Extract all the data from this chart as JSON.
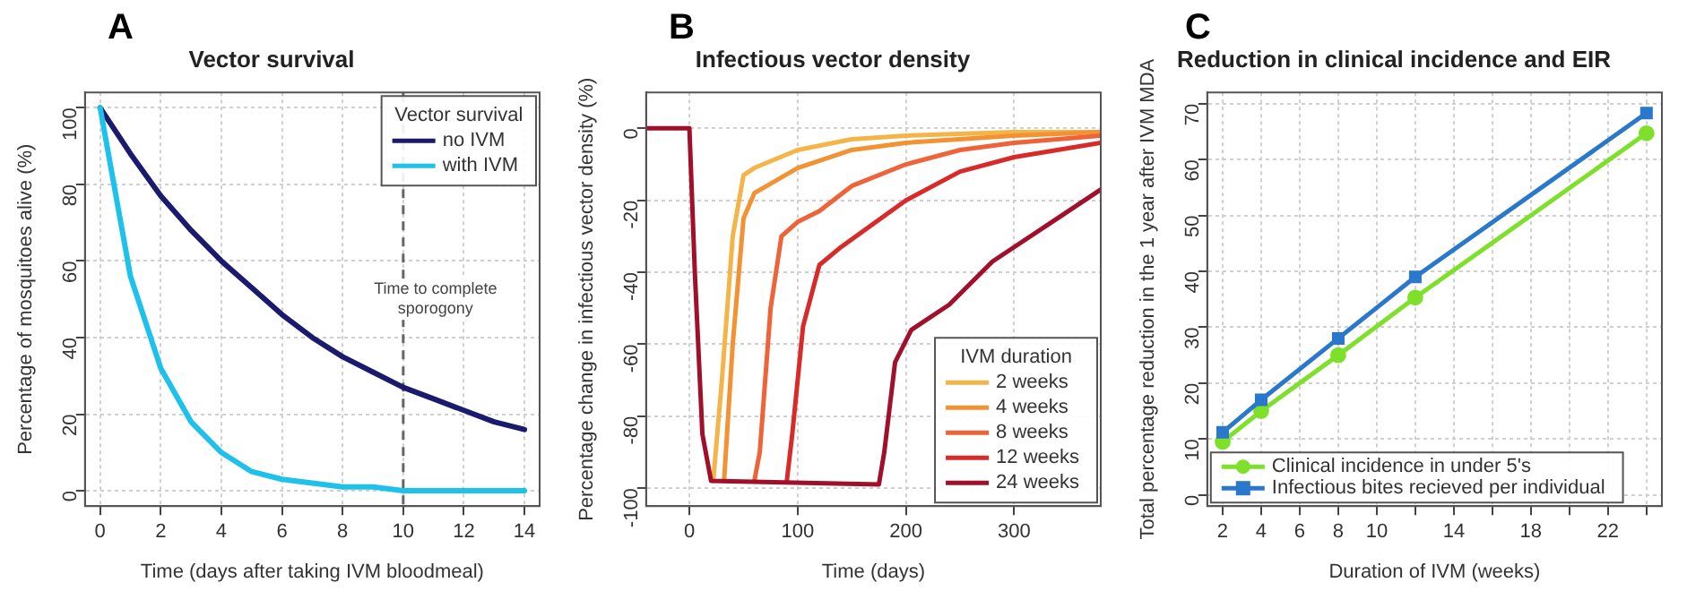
{
  "chart_data": [
    {
      "type": "line",
      "title": "Vector survival",
      "xlabel": "Time (days after taking IVM bloodmeal)",
      "ylabel": "Percentage of mosquitoes alive (%)",
      "legend_title": "Vector survival",
      "annotations": [
        "A"
      ],
      "x": [
        0,
        1,
        2,
        3,
        4,
        5,
        6,
        7,
        8,
        9,
        10,
        11,
        12,
        13,
        14
      ],
      "series": [
        {
          "name": "no IVM",
          "color": "#1a1a6e",
          "values": [
            100,
            88,
            77,
            68,
            60,
            53,
            46,
            40,
            35,
            31,
            27,
            24,
            21,
            18,
            16
          ]
        },
        {
          "name": "with IVM",
          "color": "#1ec0ec",
          "values": [
            100,
            56,
            32,
            18,
            10,
            5,
            3,
            2,
            1,
            1,
            0,
            0,
            0,
            0,
            0
          ]
        }
      ],
      "xlim": [
        -0.5,
        14.5
      ],
      "xticks": [
        0,
        2,
        4,
        6,
        8,
        10,
        12,
        14
      ],
      "ylim": [
        -4,
        104
      ],
      "yticks": [
        0,
        20,
        40,
        60,
        80,
        100
      ],
      "grid": true,
      "legend": "top right",
      "ref_lines": [
        {
          "axis": "x",
          "value": 10,
          "label": "Time to complete sporogony",
          "line_style": "dashed",
          "color": "#666666"
        }
      ]
    },
    {
      "type": "line",
      "title": "Infectious vector density",
      "xlabel": "Time (days)",
      "ylabel": "Percentage change in infectious vector density (%)",
      "legend_title": "IVM duration",
      "annotations": [
        "B"
      ],
      "series": [
        {
          "name": "2 weeks",
          "color": "#f5b447",
          "x": [
            22,
            30,
            40,
            50,
            60,
            100,
            150,
            200,
            300,
            380
          ],
          "values": [
            -98,
            -70,
            -30,
            -13,
            -11,
            -6,
            -3,
            -2,
            -1,
            -1
          ]
        },
        {
          "name": "4 weeks",
          "color": "#f39232",
          "x": [
            32,
            40,
            50,
            60,
            100,
            150,
            200,
            300,
            380
          ],
          "values": [
            -98,
            -60,
            -25,
            -18,
            -11,
            -6,
            -4,
            -2,
            -1
          ]
        },
        {
          "name": "8 weeks",
          "color": "#ee6338",
          "x": [
            60,
            65,
            75,
            85,
            100,
            120,
            150,
            200,
            250,
            300,
            380
          ],
          "values": [
            -98,
            -90,
            -50,
            -30,
            -26,
            -23,
            -16,
            -10,
            -6,
            -4,
            -2
          ]
        },
        {
          "name": "12 weeks",
          "color": "#d92a2a",
          "x": [
            90,
            95,
            105,
            120,
            140,
            200,
            250,
            300,
            380
          ],
          "values": [
            -98,
            -85,
            -55,
            -38,
            -33,
            -20,
            -12,
            -8,
            -4
          ]
        },
        {
          "name": "24 weeks",
          "color": "#a0102a",
          "x": [
            -40,
            0,
            5,
            12,
            20,
            175,
            180,
            190,
            205,
            240,
            280,
            330,
            380
          ],
          "values": [
            0,
            0,
            -40,
            -85,
            -98,
            -99,
            -90,
            -65,
            -56,
            -49,
            -37,
            -27,
            -17
          ]
        }
      ],
      "xlim": [
        -40,
        380
      ],
      "xticks": [
        0,
        100,
        200,
        300
      ],
      "ylim": [
        -105,
        10
      ],
      "yticks": [
        -100,
        -80,
        -60,
        -40,
        -20,
        0
      ],
      "grid": true,
      "legend": "bottom right"
    },
    {
      "type": "line",
      "title": "Reduction in clinical incidence and EIR",
      "xlabel": "Duration of IVM (weeks)",
      "ylabel": "Total percentage reduction in the 1 year after IVM MDA",
      "annotations": [
        "C"
      ],
      "x": [
        2,
        4,
        8,
        12,
        24
      ],
      "series": [
        {
          "name": "Clinical incidence in under 5's",
          "color": "#7ee02a",
          "marker": "circle",
          "values": [
            9.5,
            15,
            25,
            35.3,
            64.7
          ]
        },
        {
          "name": "Infectious bites recieved per individual",
          "color": "#2a78cc",
          "marker": "square",
          "values": [
            11.2,
            17,
            28,
            39,
            68.3
          ]
        }
      ],
      "xlim": [
        1.2,
        24.8
      ],
      "xticks": [
        2,
        4,
        6,
        8,
        10,
        {
          "value": 12,
          "label": null
        },
        14,
        {
          "value": 16,
          "label": null
        },
        18,
        {
          "value": 20,
          "label": null
        },
        22,
        {
          "value": 24,
          "label": null
        }
      ],
      "ylim": [
        -2,
        72
      ],
      "yticks": [
        0,
        10,
        20,
        30,
        40,
        50,
        60,
        70
      ],
      "grid": true,
      "legend": "bottom left"
    }
  ]
}
